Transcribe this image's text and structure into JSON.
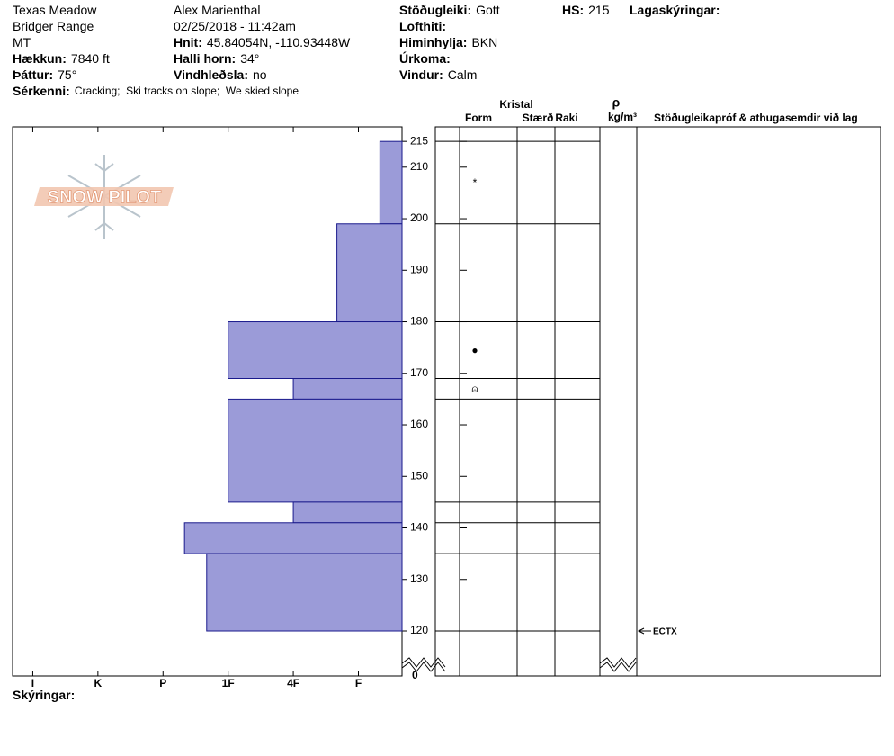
{
  "header": {
    "items": [
      {
        "value": "Texas Meadow"
      },
      {
        "value": "Bridger Range"
      },
      {
        "value": "MT"
      },
      {
        "label": "Hækkun:",
        "value": "7840 ft"
      },
      {
        "label": "Þáttur:",
        "value": "75°"
      },
      {
        "value": "Alex Marienthal"
      },
      {
        "value": "02/25/2018 - 11:42am"
      },
      {
        "label": "Hnit:",
        "value": "45.84054N, -110.93448W"
      },
      {
        "label": "Halli horn:",
        "value": "34°"
      },
      {
        "label": "Vindhleðsla:",
        "value": "no"
      },
      {
        "label": "Stöðugleiki:",
        "value": "Gott"
      },
      {
        "label": "Lofthiti:"
      },
      {
        "label": "Himinhylja:",
        "value": "BKN"
      },
      {
        "label": "Úrkoma:"
      },
      {
        "label": "Vindur:",
        "value": "Calm"
      },
      {
        "label": "HS:",
        "value": "215"
      },
      {
        "label": "Lagaskýringar:"
      },
      {
        "label": "Sérkenni:",
        "value": "Cracking;  Ski tracks on slope;  We skied slope"
      },
      {
        "label": "Skýringar:"
      }
    ]
  },
  "chart_data": {
    "type": "snow-profile",
    "logo": "SNOW PILOT",
    "xlim": [
      6.31,
      0.33
    ],
    "xticks": [
      {
        "value": 6,
        "label": "I"
      },
      {
        "value": 5,
        "label": "K"
      },
      {
        "value": 4,
        "label": "P"
      },
      {
        "value": 3,
        "label": "1F"
      },
      {
        "value": 2,
        "label": "4F"
      },
      {
        "value": 1,
        "label": "F"
      }
    ],
    "ylim": [
      120,
      218
    ],
    "yticks": [
      120,
      130,
      140,
      150,
      160,
      170,
      180,
      190,
      200,
      210,
      215
    ],
    "ybreak_tick": 0,
    "color": "#9b9bd8",
    "layers": {
      "top": [
        215,
        199,
        180,
        169,
        165,
        145,
        141,
        135
      ],
      "bottom": [
        199,
        180,
        169,
        165,
        145,
        141,
        135,
        120
      ],
      "hardness": [
        0.67,
        1.33,
        3,
        2,
        3,
        2,
        3.67,
        3.33
      ],
      "grain": [
        "*",
        null,
        "●",
        "⍝",
        null,
        null,
        null,
        null
      ]
    },
    "column_group": "Kristal",
    "columns": [
      "Form",
      "Stærð",
      "Raki"
    ],
    "density_symbol": "ρ",
    "density_unit": "kg/m³",
    "comments_header": "Stöðugleikapróf & athugasemdir við lag",
    "tests": [
      {
        "height": 120,
        "label": "ECTX"
      }
    ]
  }
}
